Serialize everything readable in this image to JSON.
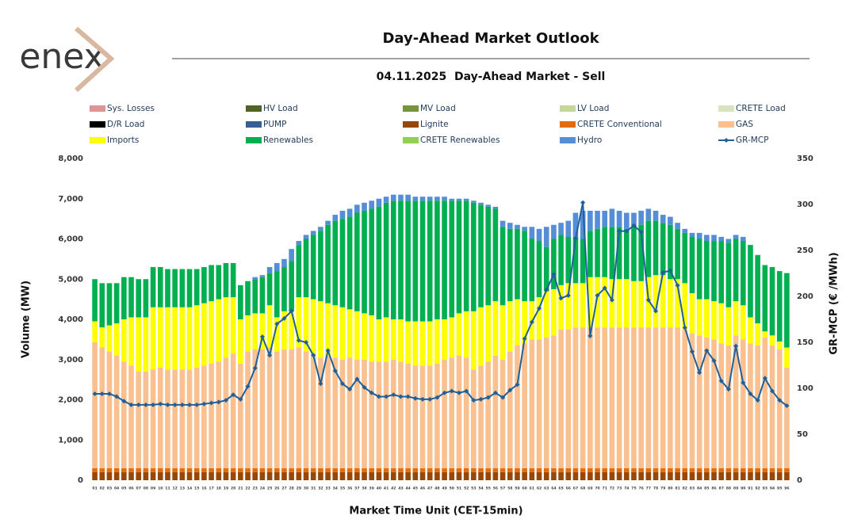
{
  "logo": "enex",
  "chart_data": {
    "type": "bar",
    "title": "Day-Ahead Market Outlook",
    "subtitle": "04.11.2025  Day-Ahead Market - Sell",
    "x_label": "Market Time Unit (CET-15min)",
    "y_label": "Volume (MW)",
    "y2_label": "GR-MCP (€ /MWh)",
    "categories": [
      "01",
      "02",
      "03",
      "04",
      "05",
      "06",
      "07",
      "08",
      "09",
      "10",
      "11",
      "12",
      "13",
      "14",
      "15",
      "16",
      "17",
      "18",
      "19",
      "20",
      "21",
      "22",
      "23",
      "24",
      "25",
      "26",
      "27",
      "28",
      "29",
      "30",
      "31",
      "32",
      "33",
      "34",
      "35",
      "36",
      "37",
      "38",
      "39",
      "40",
      "41",
      "42",
      "43",
      "44",
      "45",
      "46",
      "47",
      "48",
      "49",
      "50",
      "51",
      "52",
      "53",
      "54",
      "55",
      "56",
      "57",
      "58",
      "59",
      "60",
      "61",
      "62",
      "63",
      "64",
      "65",
      "66",
      "67",
      "68",
      "69",
      "70",
      "71",
      "72",
      "73",
      "74",
      "75",
      "76",
      "77",
      "78",
      "79",
      "80",
      "81",
      "82",
      "83",
      "84",
      "85",
      "86",
      "87",
      "88",
      "89",
      "90",
      "91",
      "92",
      "93",
      "94",
      "95",
      "96"
    ],
    "ylim": [
      0,
      8000
    ],
    "yticks": [
      0,
      {
        "value": 1000,
        "label": "1,000"
      },
      {
        "value": 2000,
        "label": "2,000"
      },
      {
        "value": 3000,
        "label": "3,000"
      },
      {
        "value": 4000,
        "label": "4,000"
      },
      {
        "value": 5000,
        "label": "5,000"
      },
      {
        "value": 6000,
        "label": "6,000"
      },
      {
        "value": 7000,
        "label": "7,000"
      },
      {
        "value": 8000,
        "label": "8,000"
      }
    ],
    "y2lim": [
      0,
      350
    ],
    "y2ticks": [
      0,
      50,
      100,
      150,
      200,
      250,
      300,
      350
    ],
    "series": [
      {
        "name": "Sys. Losses",
        "color": "#d99694"
      },
      {
        "name": "HV Load",
        "color": "#4f6228"
      },
      {
        "name": "MV Load",
        "color": "#77933c"
      },
      {
        "name": "LV Load",
        "color": "#c3d69b"
      },
      {
        "name": "CRETE Load",
        "color": "#d7e4bd"
      },
      {
        "name": "D/R Load",
        "color": "#000000"
      },
      {
        "name": "PUMP",
        "color": "#366092"
      },
      {
        "name": "Lignite",
        "color": "#974706",
        "values": [
          200,
          200,
          200,
          200,
          200,
          200,
          200,
          200,
          200,
          200,
          200,
          200,
          200,
          200,
          200,
          200,
          200,
          200,
          200,
          200,
          200,
          200,
          200,
          200,
          200,
          200,
          200,
          200,
          200,
          200,
          200,
          200,
          200,
          200,
          200,
          200,
          200,
          200,
          200,
          200,
          200,
          200,
          200,
          200,
          200,
          200,
          200,
          200,
          200,
          200,
          200,
          200,
          200,
          200,
          200,
          200,
          200,
          200,
          200,
          200,
          200,
          200,
          200,
          200,
          200,
          200,
          200,
          200,
          200,
          200,
          200,
          200,
          200,
          200,
          200,
          200,
          200,
          200,
          200,
          200,
          200,
          200,
          200,
          200,
          200,
          200,
          200,
          200,
          200,
          200,
          200,
          200,
          200,
          200,
          200,
          200
        ]
      },
      {
        "name": "CRETE Conventional",
        "color": "#e46c0a",
        "values": [
          100,
          100,
          100,
          100,
          100,
          100,
          100,
          100,
          100,
          100,
          100,
          100,
          100,
          100,
          100,
          100,
          100,
          100,
          100,
          100,
          100,
          100,
          100,
          100,
          100,
          100,
          100,
          100,
          100,
          100,
          100,
          100,
          100,
          100,
          100,
          100,
          100,
          100,
          100,
          100,
          100,
          100,
          100,
          100,
          100,
          100,
          100,
          100,
          100,
          100,
          100,
          100,
          100,
          100,
          100,
          100,
          100,
          100,
          100,
          100,
          100,
          100,
          100,
          100,
          100,
          100,
          100,
          100,
          100,
          100,
          100,
          100,
          100,
          100,
          100,
          100,
          100,
          100,
          100,
          100,
          100,
          100,
          100,
          100,
          100,
          100,
          100,
          100,
          100,
          100,
          100,
          100,
          100,
          100,
          100,
          100
        ]
      },
      {
        "name": "GAS",
        "color": "#fac090",
        "values": [
          3130,
          3000,
          2900,
          2800,
          2650,
          2550,
          2400,
          2400,
          2450,
          2500,
          2450,
          2450,
          2450,
          2450,
          2500,
          2550,
          2600,
          2650,
          2750,
          2850,
          2600,
          2900,
          2950,
          2950,
          3000,
          2900,
          2950,
          2950,
          3000,
          2900,
          2850,
          2750,
          2800,
          2750,
          2700,
          2750,
          2700,
          2700,
          2650,
          2650,
          2650,
          2700,
          2650,
          2600,
          2550,
          2550,
          2550,
          2600,
          2700,
          2750,
          2800,
          2750,
          2450,
          2550,
          2650,
          2800,
          2700,
          2900,
          3050,
          3100,
          3200,
          3200,
          3250,
          3300,
          3450,
          3450,
          3500,
          3500,
          3500,
          3500,
          3500,
          3500,
          3500,
          3500,
          3500,
          3500,
          3500,
          3500,
          3500,
          3500,
          3500,
          3450,
          3350,
          3300,
          3250,
          3200,
          3100,
          3050,
          3300,
          3200,
          3100,
          3050,
          3250,
          3050,
          2950,
          2500
        ]
      },
      {
        "name": "Imports",
        "color": "#ffff00",
        "values": [
          520,
          500,
          650,
          800,
          1050,
          1200,
          1350,
          1350,
          1550,
          1500,
          1550,
          1550,
          1550,
          1550,
          1550,
          1550,
          1550,
          1550,
          1500,
          1400,
          1100,
          900,
          900,
          900,
          1050,
          850,
          950,
          950,
          1250,
          1350,
          1350,
          1400,
          1300,
          1300,
          1300,
          1200,
          1200,
          1150,
          1150,
          1050,
          1100,
          1000,
          1050,
          1050,
          1100,
          1100,
          1100,
          1100,
          1000,
          1000,
          1050,
          1150,
          1450,
          1450,
          1400,
          1350,
          1350,
          1250,
          1150,
          1050,
          950,
          1050,
          1150,
          1150,
          1100,
          1150,
          1100,
          1100,
          1250,
          1250,
          1250,
          1200,
          1200,
          1200,
          1150,
          1150,
          1250,
          1300,
          1300,
          1200,
          1200,
          1150,
          1000,
          900,
          950,
          950,
          1000,
          950,
          850,
          850,
          650,
          550,
          150,
          250,
          200,
          500
        ]
      },
      {
        "name": "Renewables",
        "color": "#00b050",
        "values": [
          1050,
          1100,
          1050,
          1000,
          1050,
          1000,
          950,
          950,
          1000,
          1000,
          950,
          950,
          950,
          950,
          900,
          900,
          900,
          850,
          850,
          850,
          850,
          850,
          850,
          900,
          800,
          1150,
          1100,
          1250,
          1300,
          1450,
          1600,
          1750,
          1950,
          2100,
          2200,
          2300,
          2450,
          2550,
          2650,
          2800,
          2850,
          2950,
          2950,
          3000,
          3000,
          3000,
          3000,
          2950,
          2950,
          2900,
          2800,
          2750,
          2700,
          2550,
          2450,
          2300,
          1950,
          1800,
          1750,
          1750,
          1550,
          1400,
          1100,
          1250,
          1250,
          1150,
          1150,
          1100,
          1150,
          1200,
          1250,
          1300,
          1300,
          1250,
          1350,
          1400,
          1400,
          1350,
          1300,
          1350,
          1250,
          1250,
          1400,
          1500,
          1450,
          1500,
          1550,
          1600,
          1550,
          1600,
          1800,
          1700,
          1650,
          1700,
          1750,
          1850
        ]
      },
      {
        "name": "CRETE Renewables",
        "color": "#92d050"
      },
      {
        "name": "Hydro",
        "color": "#558ed5",
        "values": [
          0,
          0,
          0,
          0,
          0,
          0,
          0,
          0,
          0,
          0,
          0,
          0,
          0,
          0,
          0,
          0,
          0,
          0,
          0,
          0,
          0,
          0,
          50,
          50,
          150,
          200,
          200,
          300,
          100,
          100,
          100,
          100,
          100,
          150,
          200,
          200,
          200,
          200,
          200,
          200,
          150,
          150,
          150,
          150,
          100,
          100,
          100,
          100,
          100,
          50,
          50,
          50,
          50,
          50,
          50,
          50,
          150,
          150,
          100,
          100,
          300,
          300,
          500,
          350,
          300,
          400,
          600,
          700,
          500,
          450,
          400,
          450,
          400,
          400,
          350,
          350,
          300,
          250,
          200,
          200,
          150,
          100,
          100,
          150,
          150,
          150,
          100,
          100,
          100,
          100,
          0,
          0,
          0,
          0,
          0,
          0
        ]
      },
      {
        "name": "GR-MCP",
        "color": "#1f5f9a",
        "type": "line",
        "axis": "y2",
        "values": [
          94,
          94,
          94,
          91,
          86,
          82,
          82,
          82,
          82,
          83,
          82,
          82,
          82,
          82,
          82,
          83,
          84,
          85,
          87,
          93,
          88,
          102,
          122,
          156,
          136,
          170,
          176,
          184,
          152,
          150,
          136,
          105,
          141,
          119,
          105,
          99,
          110,
          101,
          95,
          91,
          91,
          93,
          91,
          91,
          89,
          88,
          88,
          90,
          95,
          97,
          95,
          97,
          87,
          88,
          90,
          95,
          90,
          98,
          104,
          154,
          172,
          187,
          207,
          224,
          198,
          201,
          263,
          302,
          157,
          201,
          209,
          196,
          271,
          271,
          277,
          270,
          196,
          184,
          226,
          228,
          212,
          166,
          140,
          117,
          141,
          130,
          108,
          99,
          146,
          106,
          94,
          87,
          111,
          97,
          87,
          81
        ]
      }
    ]
  }
}
